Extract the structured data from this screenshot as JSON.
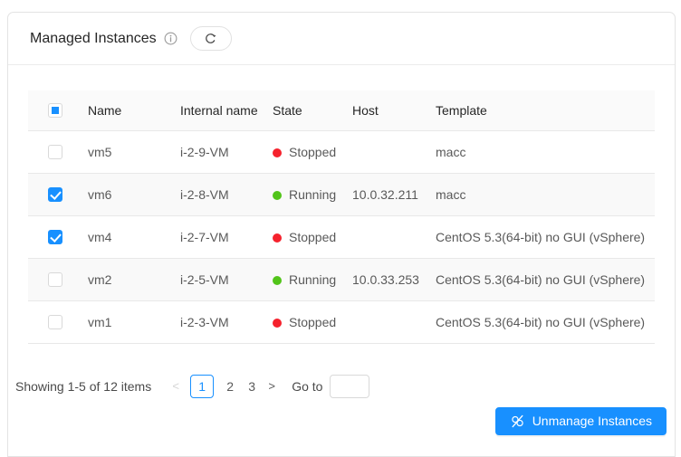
{
  "header": {
    "title": "Managed Instances",
    "info_icon": "info-circle-icon",
    "refresh_icon": "reload-icon"
  },
  "table": {
    "select_all_state": "indeterminate",
    "columns": [
      "Name",
      "Internal name",
      "State",
      "Host",
      "Template"
    ],
    "rows": [
      {
        "checked": false,
        "name": "vm5",
        "internal_name": "i-2-9-VM",
        "state": "Stopped",
        "state_color": "#f5222d",
        "host": "",
        "template": "macc"
      },
      {
        "checked": true,
        "name": "vm6",
        "internal_name": "i-2-8-VM",
        "state": "Running",
        "state_color": "#52c41a",
        "host": "10.0.32.211",
        "template": "macc"
      },
      {
        "checked": true,
        "name": "vm4",
        "internal_name": "i-2-7-VM",
        "state": "Stopped",
        "state_color": "#f5222d",
        "host": "",
        "template": "CentOS 5.3(64-bit) no GUI (vSphere)"
      },
      {
        "checked": false,
        "name": "vm2",
        "internal_name": "i-2-5-VM",
        "state": "Running",
        "state_color": "#52c41a",
        "host": "10.0.33.253",
        "template": "CentOS 5.3(64-bit) no GUI (vSphere)"
      },
      {
        "checked": false,
        "name": "vm1",
        "internal_name": "i-2-3-VM",
        "state": "Stopped",
        "state_color": "#f5222d",
        "host": "",
        "template": "CentOS 5.3(64-bit) no GUI (vSphere)"
      }
    ]
  },
  "pagination": {
    "summary": "Showing 1-5 of 12 items",
    "prev_icon": "<",
    "next_icon": ">",
    "pages": [
      "1",
      "2",
      "3"
    ],
    "active_page": "1",
    "goto_label": "Go to",
    "goto_value": ""
  },
  "actions": {
    "unmanage_label": "Unmanage Instances",
    "unmanage_icon": "unlink-icon"
  },
  "colors": {
    "accent": "#1890ff",
    "running": "#52c41a",
    "stopped": "#f5222d"
  }
}
